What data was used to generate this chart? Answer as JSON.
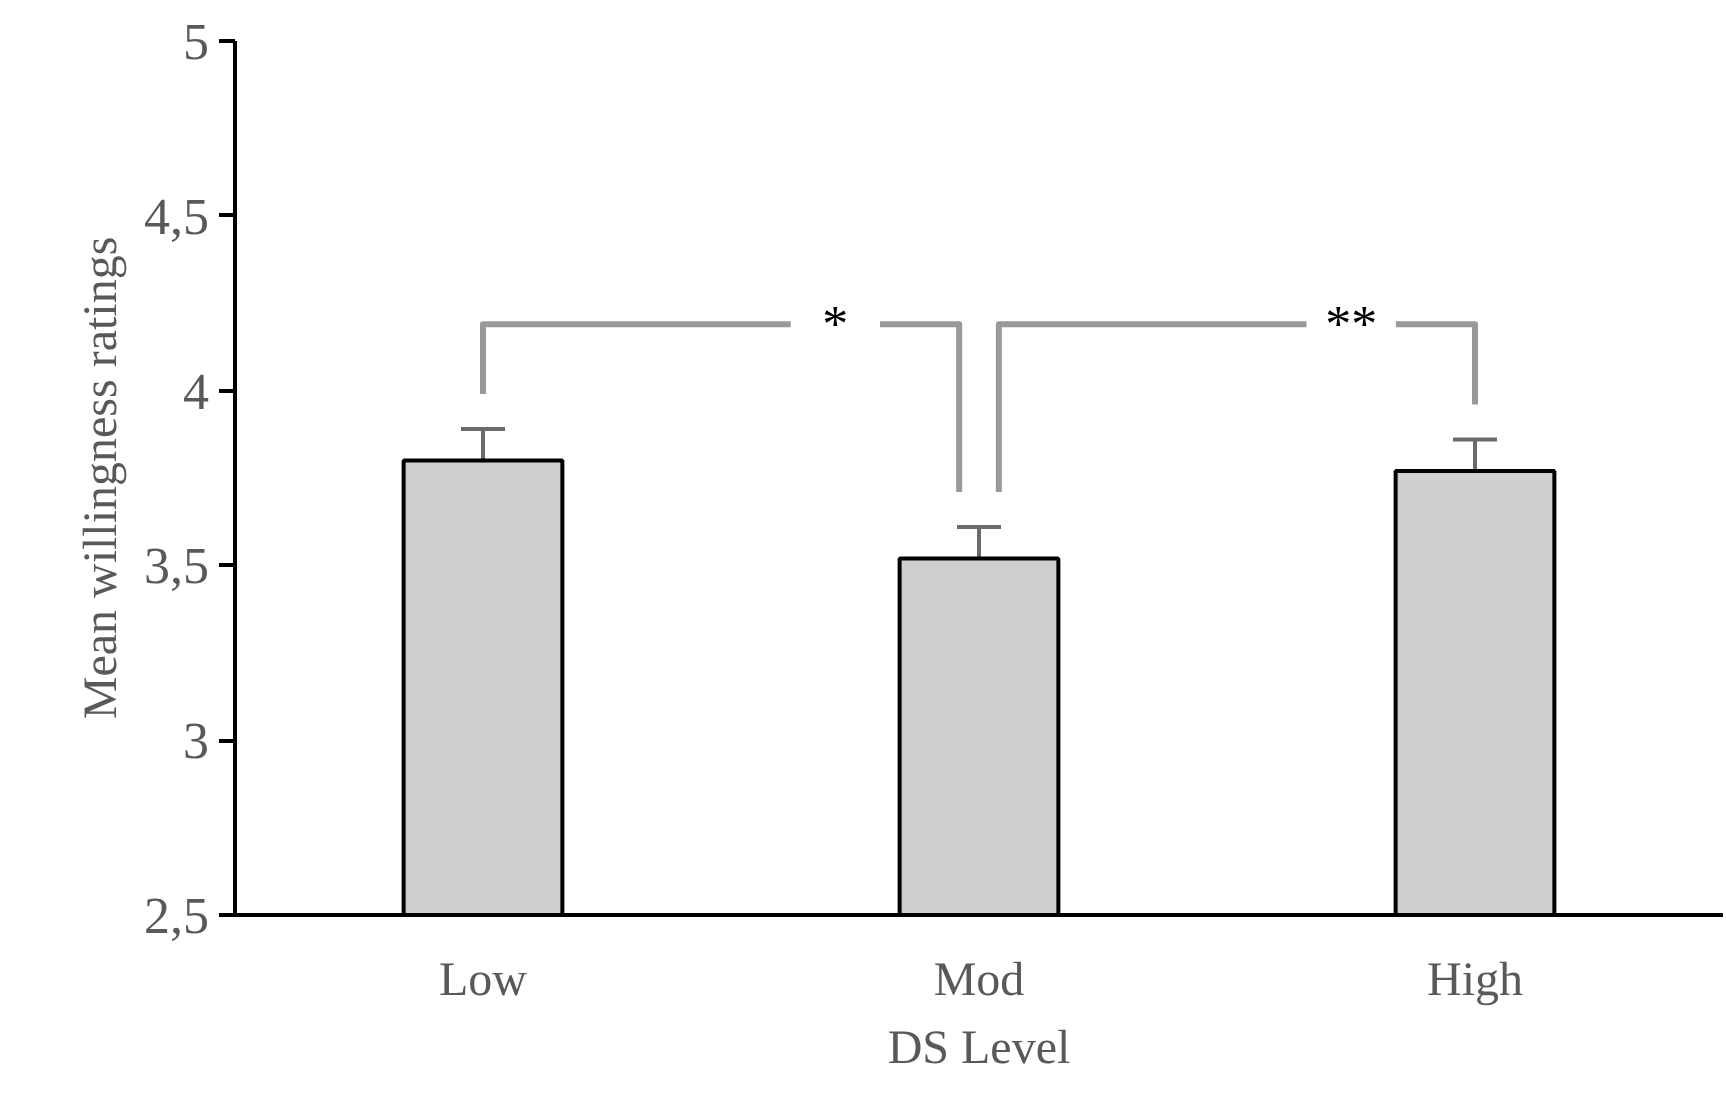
{
  "chart_data": {
    "type": "bar",
    "xlabel": "DS Level",
    "ylabel": "Mean willingness ratings",
    "categories": [
      "Low",
      "Mod",
      "High"
    ],
    "values": [
      3.8,
      3.52,
      3.77
    ],
    "errors": [
      0.09,
      0.09,
      0.09
    ],
    "color": "#d0cfd0",
    "ylim": [
      2.5,
      5
    ],
    "yticks": [
      {
        "value": 2.5,
        "label": "2,5"
      },
      3,
      {
        "value": 3.5,
        "label": "3,5"
      },
      4,
      {
        "value": 4.5,
        "label": "4,5"
      },
      5
    ],
    "grid": false,
    "annotations": [
      "*",
      "**"
    ]
  }
}
